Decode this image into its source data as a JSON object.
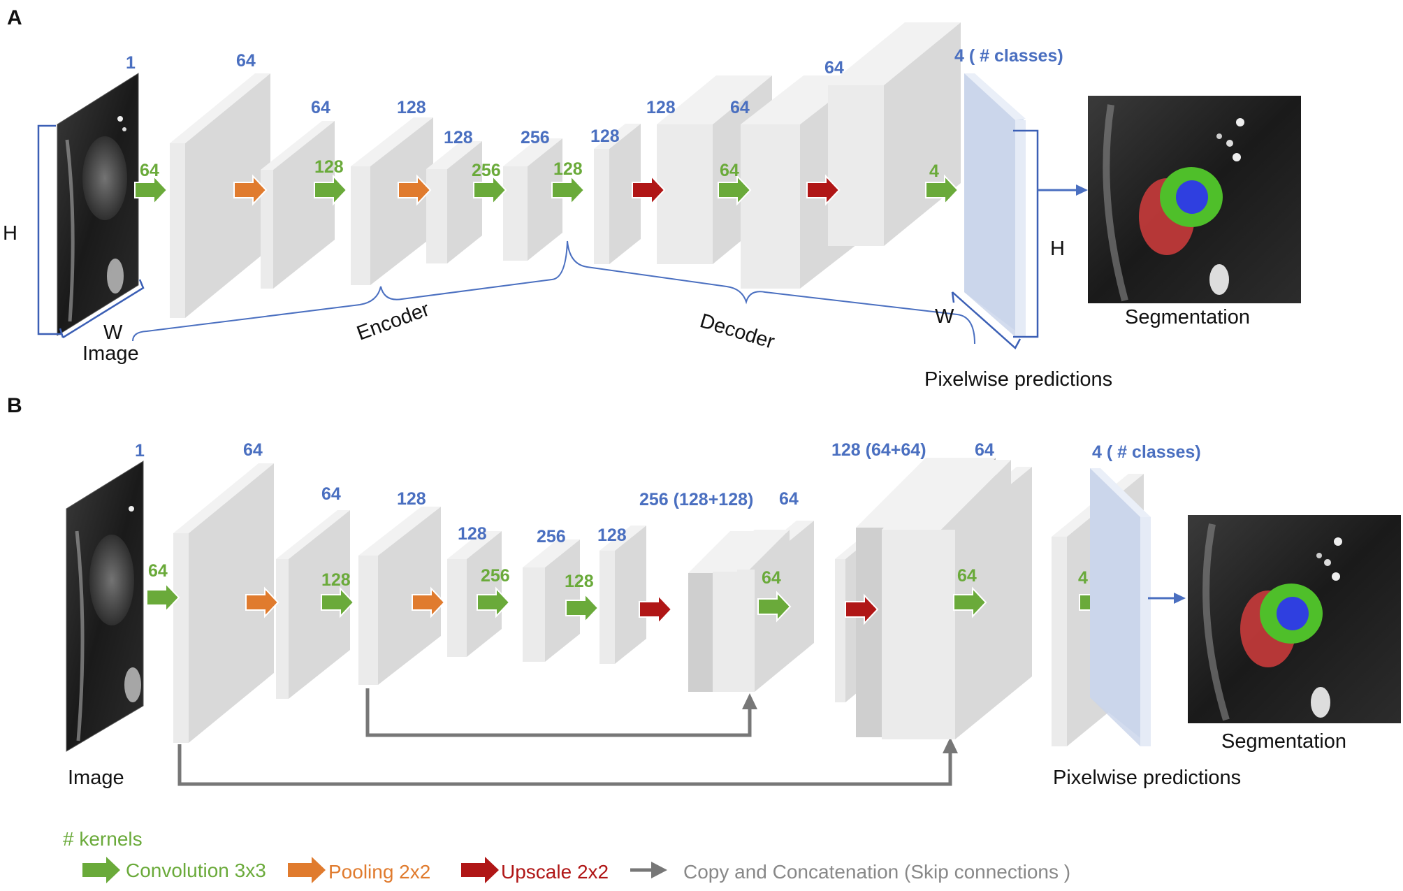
{
  "panelA": {
    "label": "A",
    "input_channels": "1",
    "block_counts": [
      "64",
      "64",
      "128",
      "128",
      "256",
      "128",
      "128",
      "64",
      "64"
    ],
    "output_count": "4 ( # classes)",
    "arrow_counts": [
      "64",
      "128",
      "256",
      "128",
      "64",
      "4"
    ],
    "h_label": "H",
    "w_label": "W",
    "image_label": "Image",
    "encoder_label": "Encoder",
    "decoder_label": "Decoder",
    "out_h_label": "H",
    "out_w_label": "W",
    "pixelwise_label": "Pixelwise predictions",
    "segmentation_label": "Segmentation"
  },
  "panelB": {
    "label": "B",
    "input_channels": "1",
    "block_counts": [
      "64",
      "64",
      "128",
      "128",
      "256",
      "128",
      "256 (128+128)",
      "64",
      "128 (64+64)",
      "64"
    ],
    "output_count": "4 ( # classes)",
    "arrow_counts": [
      "64",
      "128",
      "256",
      "128",
      "64",
      "64",
      "4"
    ],
    "image_label": "Image",
    "pixelwise_label": "Pixelwise predictions",
    "segmentation_label": "Segmentation"
  },
  "legend": {
    "title": "# kernels",
    "conv": "Convolution 3x3",
    "pool": "Pooling 2x2",
    "up": "Upscale 2x2",
    "copy": "Copy and Concatenation (Skip connections )"
  },
  "colors": {
    "conv": "#6aaa3a",
    "pool": "#e07b2e",
    "up": "#b01616",
    "copy": "#777777",
    "count": "#4a6fc0"
  }
}
